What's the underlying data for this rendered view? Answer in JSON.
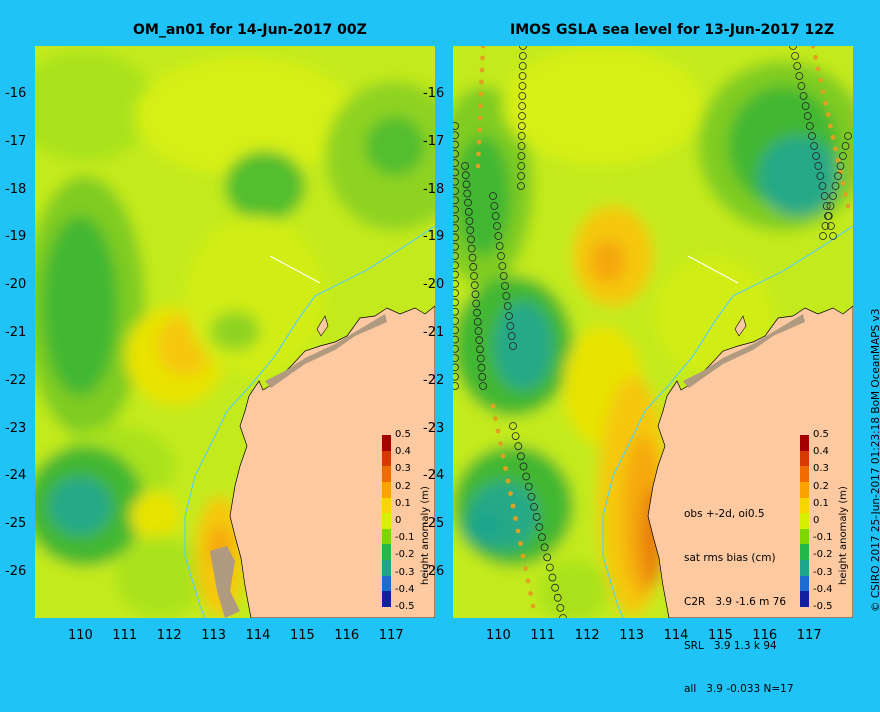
{
  "left_panel": {
    "title": "OM_an01 for 14-Jun-2017 00Z",
    "colorbar_label": "height anomaly (m)"
  },
  "right_panel": {
    "title": "IMOS GSLA sea level  for 13-Jun-2017 12Z",
    "colorbar_label": "height anomaly (m)",
    "stats": {
      "line1": "obs +-2d, oi0.5",
      "line2": "sat rms bias (cm)",
      "line3": "C2R   3.9 -1.6 m 76",
      "line4": "SRL   3.9 1.3 k 94",
      "line5": "all   3.9 -0.033 N=17"
    },
    "credit": "© CSIRO 2017   25-Jun-2017 01:23:18 BoM OceanMAPS v3"
  },
  "axes": {
    "lat_ticks": [
      "-16",
      "-17",
      "-18",
      "-19",
      "-20",
      "-21",
      "-22",
      "-23",
      "-24",
      "-25",
      "-26"
    ],
    "lon_ticks": [
      "110",
      "111",
      "112",
      "113",
      "114",
      "115",
      "116",
      "117"
    ],
    "lat_range": [
      -26.9,
      -15
    ]
  },
  "colorbar": {
    "ticks": [
      "0.5",
      "0.4",
      "0.3",
      "0.2",
      "0.1",
      "0",
      "-0.1",
      "-0.2",
      "-0.3",
      "-0.4",
      "-0.5"
    ],
    "colors": [
      "#a50000",
      "#d63a00",
      "#f06c00",
      "#fca300",
      "#f8d400",
      "#d7f000",
      "#7ed600",
      "#22b84a",
      "#1aa58c",
      "#1d6ad0",
      "#1020a0"
    ]
  }
}
